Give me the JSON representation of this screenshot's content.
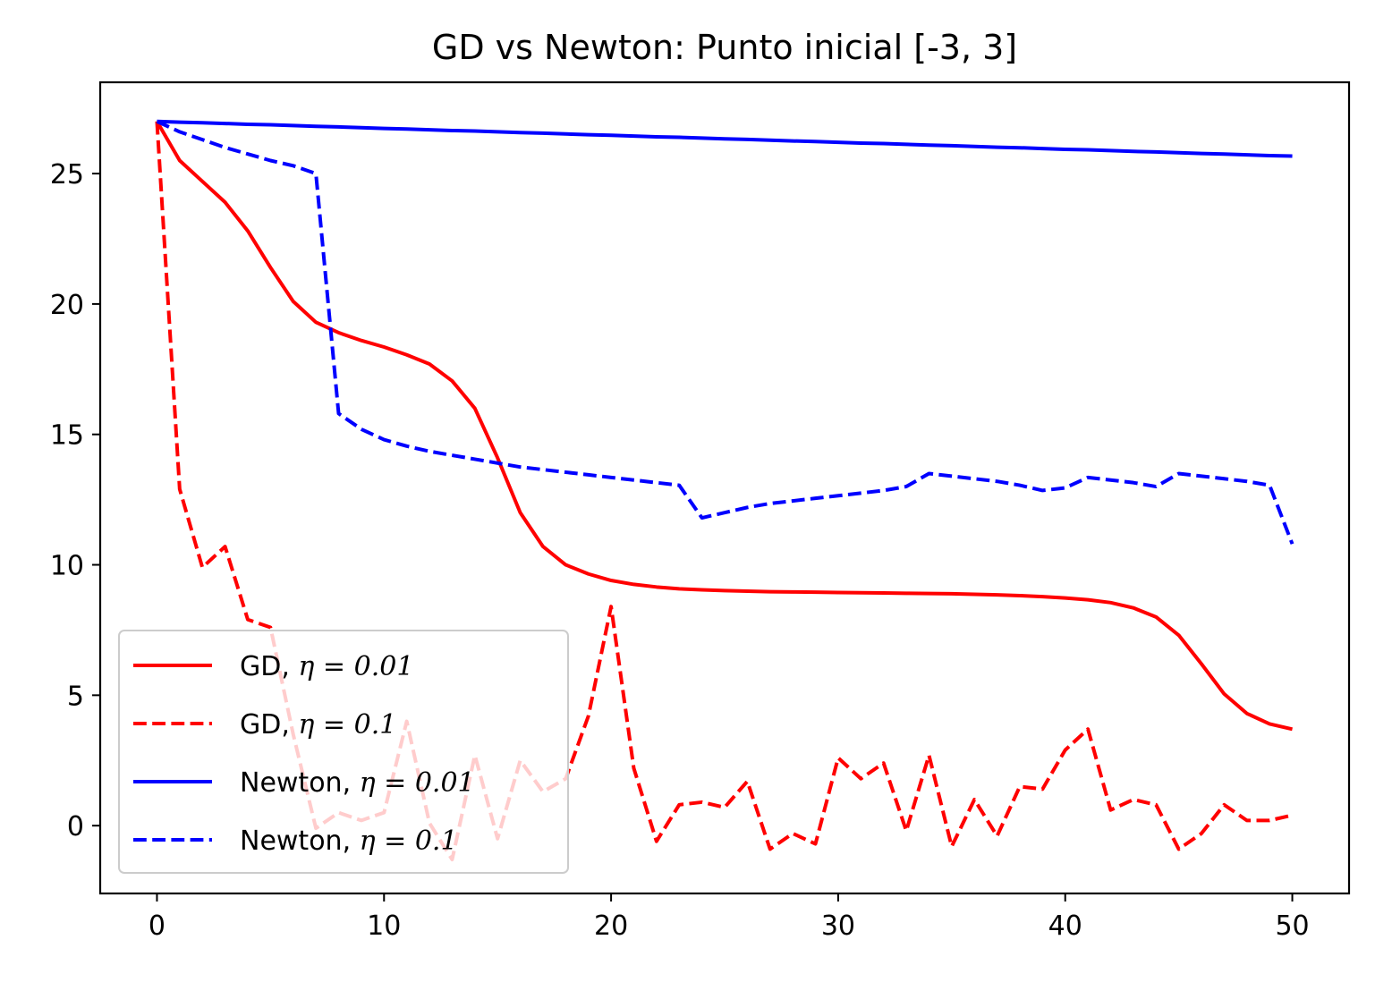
{
  "chart_data": {
    "type": "line",
    "title": "GD vs Newton: Punto inicial [-3, 3]",
    "xlabel": "",
    "ylabel": "",
    "xlim": [
      -2.5,
      52.5
    ],
    "ylim": [
      -2.6,
      28.5
    ],
    "xticks": [
      0,
      10,
      20,
      30,
      40,
      50
    ],
    "yticks": [
      0,
      5,
      10,
      15,
      20,
      25
    ],
    "grid": false,
    "legend_position": "lower-left",
    "series": [
      {
        "name": "GD, η=0.01",
        "legend_prefix": "GD, ",
        "legend_math": "η = 0.01",
        "color": "#ff0000",
        "style": "solid",
        "values": [
          27.0,
          25.5,
          24.7,
          23.9,
          22.8,
          21.4,
          20.1,
          19.3,
          18.9,
          18.6,
          18.35,
          18.05,
          17.7,
          17.05,
          16.0,
          14.1,
          12.0,
          10.7,
          10.0,
          9.65,
          9.4,
          9.25,
          9.15,
          9.08,
          9.04,
          9.01,
          8.99,
          8.97,
          8.96,
          8.95,
          8.94,
          8.93,
          8.92,
          8.91,
          8.9,
          8.89,
          8.87,
          8.85,
          8.82,
          8.78,
          8.73,
          8.66,
          8.55,
          8.35,
          8.0,
          7.3,
          6.2,
          5.05,
          4.3,
          3.9,
          3.7
        ]
      },
      {
        "name": "GD, η=0.1",
        "legend_prefix": "GD, ",
        "legend_math": "η = 0.1",
        "color": "#ff0000",
        "style": "dashed",
        "values": [
          27.0,
          12.9,
          9.9,
          10.7,
          7.9,
          7.6,
          3.5,
          -0.1,
          0.5,
          0.2,
          0.5,
          4.0,
          0.1,
          -1.3,
          2.7,
          -0.5,
          2.5,
          1.3,
          1.8,
          4.2,
          8.4,
          2.2,
          -0.6,
          0.8,
          0.9,
          0.7,
          1.7,
          -0.9,
          -0.3,
          -0.7,
          2.6,
          1.8,
          2.4,
          -0.2,
          2.7,
          -0.8,
          1.0,
          -0.4,
          1.5,
          1.4,
          2.9,
          3.7,
          0.6,
          1.0,
          0.8,
          -0.9,
          -0.3,
          0.8,
          0.2,
          0.2,
          0.4
        ]
      },
      {
        "name": "Newton, η=0.01",
        "legend_prefix": "Newton, ",
        "legend_math": "η = 0.01",
        "color": "#0000ff",
        "style": "solid",
        "values": [
          27.0,
          26.97,
          26.95,
          26.92,
          26.89,
          26.87,
          26.84,
          26.81,
          26.79,
          26.76,
          26.73,
          26.71,
          26.68,
          26.65,
          26.63,
          26.6,
          26.57,
          26.55,
          26.52,
          26.49,
          26.47,
          26.44,
          26.41,
          26.39,
          26.36,
          26.33,
          26.31,
          26.28,
          26.25,
          26.23,
          26.2,
          26.17,
          26.15,
          26.12,
          26.09,
          26.07,
          26.04,
          26.01,
          25.99,
          25.96,
          25.93,
          25.91,
          25.88,
          25.85,
          25.83,
          25.8,
          25.77,
          25.75,
          25.72,
          25.69,
          25.67
        ]
      },
      {
        "name": "Newton, η=0.1",
        "legend_prefix": "Newton, ",
        "legend_math": "η = 0.1",
        "color": "#0000ff",
        "style": "dashed",
        "values": [
          27.0,
          26.6,
          26.3,
          26.0,
          25.75,
          25.5,
          25.3,
          25.0,
          15.8,
          15.2,
          14.8,
          14.55,
          14.35,
          14.2,
          14.05,
          13.9,
          13.75,
          13.65,
          13.55,
          13.45,
          13.35,
          13.25,
          13.15,
          13.05,
          11.8,
          12.0,
          12.2,
          12.35,
          12.45,
          12.55,
          12.65,
          12.75,
          12.85,
          13.0,
          13.5,
          13.4,
          13.3,
          13.2,
          13.05,
          12.85,
          12.95,
          13.35,
          13.25,
          13.15,
          13.0,
          13.5,
          13.4,
          13.3,
          13.2,
          13.05,
          10.8
        ]
      }
    ]
  }
}
